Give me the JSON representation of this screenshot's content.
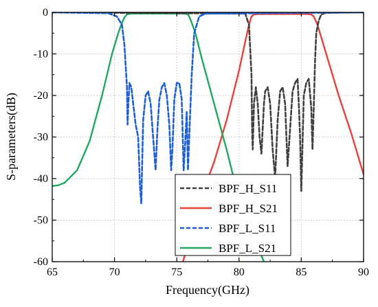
{
  "chart_data": {
    "type": "line",
    "title": "",
    "xlabel": "Frequency(GHz)",
    "ylabel": "S-parameters(dB)",
    "xlim": [
      65,
      90
    ],
    "ylim": [
      -60,
      0
    ],
    "xticks": [
      65,
      70,
      75,
      80,
      85,
      90
    ],
    "yticks": [
      0,
      -10,
      -20,
      -30,
      -40,
      -50,
      -60
    ],
    "grid": true,
    "legend_position": "bottom-center",
    "series": [
      {
        "name": "BPF_H_S11",
        "color": "#404040",
        "style": "dashed",
        "x": [
          65,
          80.5,
          80.8,
          81.0,
          81.05,
          81.1,
          81.2,
          81.35,
          81.5,
          81.65,
          81.8,
          81.9,
          82.0,
          82.1,
          82.3,
          82.5,
          82.7,
          82.9,
          83.1,
          83.3,
          83.5,
          83.7,
          83.9,
          84.1,
          84.3,
          84.5,
          84.7,
          84.8,
          84.9,
          85.0,
          85.2,
          85.4,
          85.6,
          85.8,
          85.9,
          86.0,
          86.1,
          86.2,
          86.4,
          86.6,
          87.0,
          90
        ],
        "y": [
          0,
          -0.3,
          -3,
          -15,
          -28,
          -33,
          -22,
          -18,
          -22,
          -30,
          -34,
          -28,
          -22,
          -19,
          -18,
          -22,
          -33,
          -40,
          -26,
          -19,
          -18,
          -22,
          -37,
          -28,
          -19,
          -17,
          -16,
          -22,
          -30,
          -43,
          -20,
          -17,
          -16,
          -23,
          -33,
          -23,
          -12,
          -5,
          -2,
          -0.5,
          -0.1,
          0
        ]
      },
      {
        "name": "BPF_H_S21",
        "color": "#e8403a",
        "style": "solid",
        "x": [
          75.5,
          77,
          78,
          79,
          80,
          80.5,
          80.8,
          81.0,
          81.2,
          81.5,
          85.5,
          85.8,
          86.0,
          86.3,
          86.6,
          87,
          88,
          89,
          90
        ],
        "y": [
          -60,
          -44,
          -36,
          -26,
          -14,
          -7,
          -3,
          -1,
          -0.5,
          -0.4,
          -0.4,
          -0.5,
          -1,
          -3,
          -6,
          -10,
          -20,
          -29,
          -39
        ]
      },
      {
        "name": "BPF_L_S11",
        "color": "#1f5fd6",
        "style": "dashed",
        "x": [
          65,
          69.5,
          70.2,
          70.6,
          70.8,
          71.0,
          71.05,
          71.1,
          71.2,
          71.35,
          71.5,
          71.7,
          71.9,
          72.05,
          72.15,
          72.3,
          72.5,
          72.7,
          72.9,
          73.1,
          73.3,
          73.45,
          73.6,
          73.8,
          74.0,
          74.2,
          74.4,
          74.55,
          74.65,
          74.8,
          75.0,
          75.2,
          75.4,
          75.55,
          75.65,
          75.8,
          75.9,
          76.0,
          76.2,
          76.4,
          76.8,
          77.3,
          90
        ],
        "y": [
          0,
          -0.2,
          -1,
          -3,
          -8,
          -18,
          -27,
          -23,
          -17,
          -18,
          -22,
          -27,
          -30,
          -42,
          -46,
          -26,
          -20,
          -19,
          -22,
          -30,
          -38,
          -28,
          -21,
          -18,
          -17,
          -20,
          -27,
          -38,
          -33,
          -21,
          -17,
          -17,
          -21,
          -38,
          -33,
          -24,
          -38,
          -30,
          -15,
          -5,
          -1,
          -0.3,
          0
        ]
      },
      {
        "name": "BPF_L_S21",
        "color": "#1fa860",
        "style": "solid",
        "x": [
          65,
          65.5,
          66,
          67,
          68,
          69,
          69.8,
          70.3,
          70.6,
          70.8,
          71.0,
          71.3,
          75.7,
          75.9,
          76.0,
          76.2,
          76.5,
          77,
          78,
          79,
          80,
          81,
          82
        ],
        "y": [
          -41.8,
          -41.6,
          -41,
          -38,
          -31,
          -20,
          -10,
          -5,
          -2.5,
          -1.2,
          -0.5,
          -0.3,
          -0.3,
          -0.5,
          -1,
          -2.5,
          -5,
          -11,
          -22,
          -33,
          -45,
          -53,
          -60
        ]
      }
    ]
  }
}
